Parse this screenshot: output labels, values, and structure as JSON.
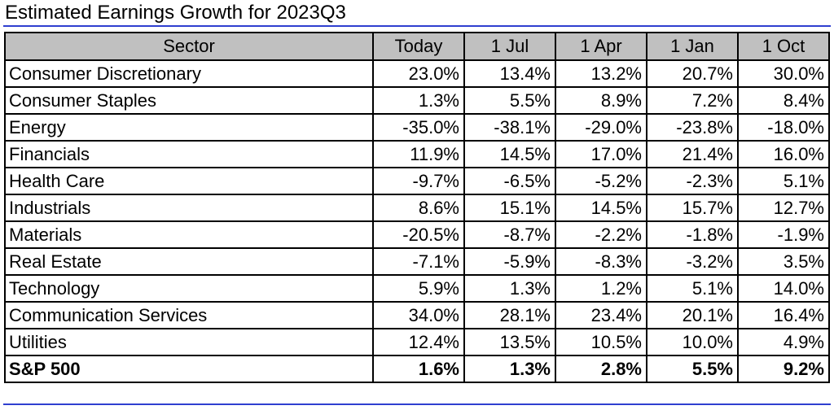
{
  "title": "Estimated Earnings Growth for 2023Q3",
  "colors": {
    "rule": "#2f3fd0",
    "header_bg": "#c0c0c0",
    "border": "#000000"
  },
  "chart_data": {
    "type": "table",
    "title": "Estimated Earnings Growth for 2023Q3",
    "columns": [
      "Sector",
      "Today",
      "1 Jul",
      "1 Apr",
      "1 Jan",
      "1 Oct"
    ],
    "rows": [
      {
        "sector": "Consumer Discretionary",
        "values": [
          "23.0%",
          "13.4%",
          "13.2%",
          "20.7%",
          "30.0%"
        ]
      },
      {
        "sector": "Consumer Staples",
        "values": [
          "1.3%",
          "5.5%",
          "8.9%",
          "7.2%",
          "8.4%"
        ]
      },
      {
        "sector": "Energy",
        "values": [
          "-35.0%",
          "-38.1%",
          "-29.0%",
          "-23.8%",
          "-18.0%"
        ]
      },
      {
        "sector": "Financials",
        "values": [
          "11.9%",
          "14.5%",
          "17.0%",
          "21.4%",
          "16.0%"
        ]
      },
      {
        "sector": "Health Care",
        "values": [
          "-9.7%",
          "-6.5%",
          "-5.2%",
          "-2.3%",
          "5.1%"
        ]
      },
      {
        "sector": "Industrials",
        "values": [
          "8.6%",
          "15.1%",
          "14.5%",
          "15.7%",
          "12.7%"
        ]
      },
      {
        "sector": "Materials",
        "values": [
          "-20.5%",
          "-8.7%",
          "-2.2%",
          "-1.8%",
          "-1.9%"
        ]
      },
      {
        "sector": "Real Estate",
        "values": [
          "-7.1%",
          "-5.9%",
          "-8.3%",
          "-3.2%",
          "3.5%"
        ]
      },
      {
        "sector": "Technology",
        "values": [
          "5.9%",
          "1.3%",
          "1.2%",
          "5.1%",
          "14.0%"
        ]
      },
      {
        "sector": "Communication Services",
        "values": [
          "34.0%",
          "28.1%",
          "23.4%",
          "20.1%",
          "16.4%"
        ]
      },
      {
        "sector": "Utilities",
        "values": [
          "12.4%",
          "13.5%",
          "10.5%",
          "10.0%",
          "4.9%"
        ]
      }
    ],
    "total": {
      "sector": "S&P 500",
      "values": [
        "1.6%",
        "1.3%",
        "2.8%",
        "5.5%",
        "9.2%"
      ]
    }
  }
}
